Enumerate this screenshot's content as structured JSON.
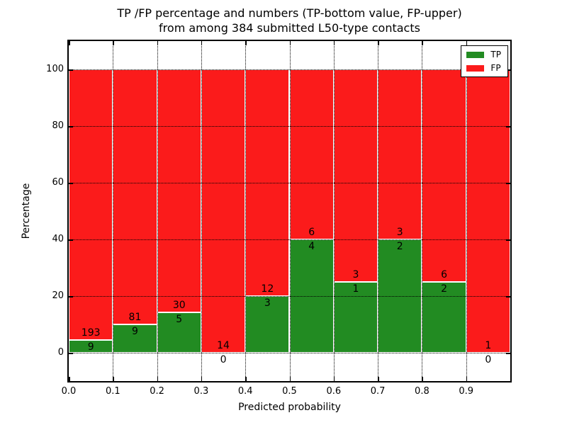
{
  "chart_data": {
    "type": "bar",
    "stacked": true,
    "orientation": "vertical",
    "title_lines": [
      "TP /FP percentage and numbers (TP-bottom value, FP-upper)",
      "from among 384 submitted L50-type contacts"
    ],
    "xlabel": "Predicted probability",
    "ylabel": "Percentage",
    "total_contacts": 384,
    "xlim": [
      0.0,
      1.0
    ],
    "ylim": [
      -10,
      110
    ],
    "bin_width": 0.1,
    "x_tick_values": [
      0.0,
      0.1,
      0.2,
      0.3,
      0.4,
      0.5,
      0.6,
      0.7,
      0.8,
      0.9
    ],
    "x_tick_labels": [
      "0.0",
      "0.1",
      "0.2",
      "0.3",
      "0.4",
      "0.5",
      "0.6",
      "0.7",
      "0.8",
      "0.9"
    ],
    "y_tick_values": [
      0,
      20,
      40,
      60,
      80,
      100
    ],
    "y_tick_labels": [
      "0",
      "20",
      "40",
      "60",
      "80",
      "100"
    ],
    "grid": {
      "style": "dotted",
      "color": "#000000"
    },
    "bar_edge_color": "#ffffff",
    "series": [
      {
        "name": "TP",
        "color": "#228b22"
      },
      {
        "name": "FP",
        "color": "#fb1b1b"
      }
    ],
    "bins": [
      {
        "range": "0.0-0.1",
        "tp": 9,
        "fp": 193,
        "tp_pct": 4.5,
        "fp_pct": 95.5
      },
      {
        "range": "0.1-0.2",
        "tp": 9,
        "fp": 81,
        "tp_pct": 10.0,
        "fp_pct": 90.0
      },
      {
        "range": "0.2-0.3",
        "tp": 5,
        "fp": 30,
        "tp_pct": 14.3,
        "fp_pct": 85.7
      },
      {
        "range": "0.3-0.4",
        "tp": 0,
        "fp": 14,
        "tp_pct": 0.0,
        "fp_pct": 100.0
      },
      {
        "range": "0.4-0.5",
        "tp": 3,
        "fp": 12,
        "tp_pct": 20.0,
        "fp_pct": 80.0
      },
      {
        "range": "0.5-0.6",
        "tp": 4,
        "fp": 6,
        "tp_pct": 40.0,
        "fp_pct": 60.0
      },
      {
        "range": "0.6-0.7",
        "tp": 1,
        "fp": 3,
        "tp_pct": 25.0,
        "fp_pct": 75.0
      },
      {
        "range": "0.7-0.8",
        "tp": 2,
        "fp": 3,
        "tp_pct": 40.0,
        "fp_pct": 60.0
      },
      {
        "range": "0.8-0.9",
        "tp": 2,
        "fp": 6,
        "tp_pct": 25.0,
        "fp_pct": 75.0
      },
      {
        "range": "0.9-1.0",
        "tp": 0,
        "fp": 1,
        "tp_pct": 0.0,
        "fp_pct": 100.0
      }
    ],
    "legend": {
      "position": "upper right"
    }
  }
}
